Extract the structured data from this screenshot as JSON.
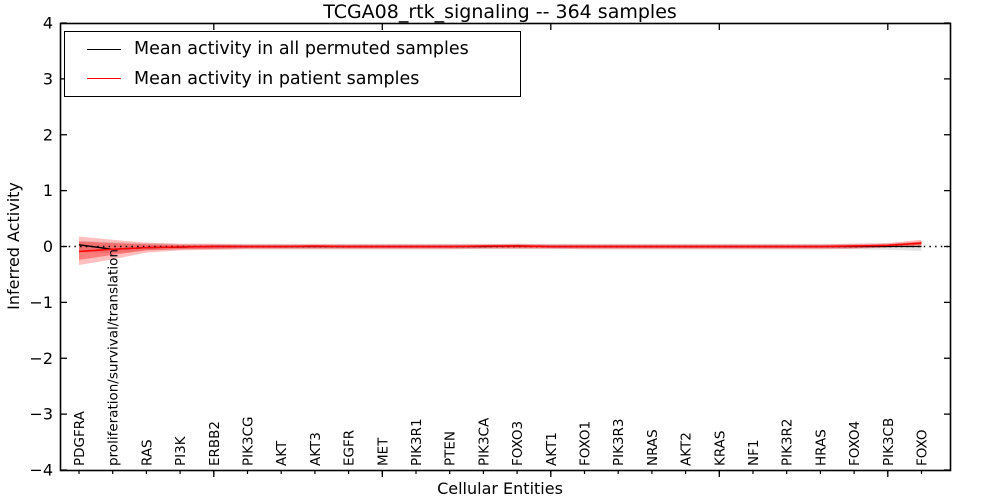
{
  "chart_data": {
    "type": "line",
    "title": "TCGA08_rtk_signaling -- 364 samples",
    "xlabel": "Cellular Entities",
    "ylabel": "Inferred Activity",
    "ylim": [
      -4,
      4
    ],
    "ytick_values": [
      4,
      3,
      2,
      1,
      0,
      -1,
      -2,
      -3,
      -4
    ],
    "ytick_labels": [
      "4",
      "3",
      "2",
      "1",
      "0",
      "−1",
      "−2",
      "−3",
      "−4"
    ],
    "grid": false,
    "legend_position": "upper left",
    "zero_line": {
      "value": 0,
      "style": "dotted",
      "color": "#000000"
    },
    "categories": [
      "PDGFRA",
      "proliferation/survival/translation",
      "RAS",
      "PI3K",
      "ERBB2",
      "PIK3CG",
      "AKT",
      "AKT3",
      "EGFR",
      "MET",
      "PIK3R1",
      "PTEN",
      "PIK3CA",
      "FOXO3",
      "AKT1",
      "FOXO1",
      "PIK3R3",
      "NRAS",
      "AKT2",
      "KRAS",
      "NF1",
      "PIK3R2",
      "HRAS",
      "FOXO4",
      "PIK3CB",
      "FOXO"
    ],
    "series": [
      {
        "name": "Mean activity in all permuted samples",
        "color": "#000000",
        "values": [
          0.03,
          -0.05,
          -0.02,
          -0.01,
          0,
          0,
          0,
          0,
          0,
          0,
          0,
          0,
          0,
          0.01,
          0,
          0,
          0,
          0,
          0,
          0,
          0,
          0,
          0,
          0,
          0,
          0
        ]
      },
      {
        "name": "Mean activity in patient samples",
        "color": "#ff0000",
        "values": [
          -0.09,
          -0.05,
          -0.02,
          -0.01,
          0,
          0,
          0,
          0.01,
          0,
          0,
          0,
          0,
          0.01,
          0.01,
          0,
          0,
          0,
          0,
          0,
          0,
          0,
          0,
          0,
          0.01,
          0.02,
          0.06
        ]
      }
    ],
    "bands": [
      {
        "name": "permuted-sample-spread",
        "color": "#000000",
        "opacity": 0.1,
        "upper": [
          0.1,
          0.08,
          0.06,
          0.05,
          0.05,
          0.05,
          0.05,
          0.05,
          0.05,
          0.05,
          0.05,
          0.05,
          0.05,
          0.05,
          0.05,
          0.05,
          0.05,
          0.05,
          0.05,
          0.05,
          0.05,
          0.05,
          0.05,
          0.05,
          0.06,
          0.08
        ],
        "lower": [
          -0.1,
          -0.12,
          -0.07,
          -0.05,
          -0.05,
          -0.05,
          -0.05,
          -0.05,
          -0.05,
          -0.05,
          -0.05,
          -0.05,
          -0.05,
          -0.05,
          -0.05,
          -0.05,
          -0.05,
          -0.05,
          -0.05,
          -0.05,
          -0.05,
          -0.05,
          -0.05,
          -0.05,
          -0.06,
          -0.08
        ]
      },
      {
        "name": "patient-sample-spread-outer",
        "color": "#ff0000",
        "opacity": 0.25,
        "upper": [
          0.18,
          0.12,
          0.07,
          0.05,
          0.05,
          0.04,
          0.04,
          0.04,
          0.04,
          0.04,
          0.04,
          0.04,
          0.04,
          0.05,
          0.04,
          0.04,
          0.04,
          0.04,
          0.04,
          0.04,
          0.04,
          0.04,
          0.04,
          0.05,
          0.06,
          0.12
        ],
        "lower": [
          -0.33,
          -0.23,
          -0.11,
          -0.07,
          -0.06,
          -0.05,
          -0.05,
          -0.05,
          -0.05,
          -0.05,
          -0.05,
          -0.05,
          -0.04,
          -0.04,
          -0.04,
          -0.05,
          -0.05,
          -0.05,
          -0.05,
          -0.05,
          -0.05,
          -0.05,
          -0.05,
          -0.04,
          -0.02,
          0.01
        ]
      },
      {
        "name": "patient-sample-spread-inner",
        "color": "#ff0000",
        "opacity": 0.35,
        "upper": [
          0.09,
          0.06,
          0.04,
          0.03,
          0.03,
          0.02,
          0.02,
          0.02,
          0.02,
          0.02,
          0.02,
          0.02,
          0.02,
          0.03,
          0.02,
          0.02,
          0.02,
          0.02,
          0.02,
          0.02,
          0.02,
          0.02,
          0.02,
          0.03,
          0.04,
          0.09
        ],
        "lower": [
          -0.24,
          -0.15,
          -0.07,
          -0.05,
          -0.04,
          -0.03,
          -0.03,
          -0.03,
          -0.03,
          -0.03,
          -0.03,
          -0.03,
          -0.03,
          -0.03,
          -0.03,
          -0.03,
          -0.03,
          -0.03,
          -0.03,
          -0.03,
          -0.03,
          -0.03,
          -0.03,
          -0.03,
          -0.01,
          0.03
        ]
      }
    ],
    "top_tick_category_indices": [
      4,
      9,
      14,
      19,
      24
    ]
  }
}
